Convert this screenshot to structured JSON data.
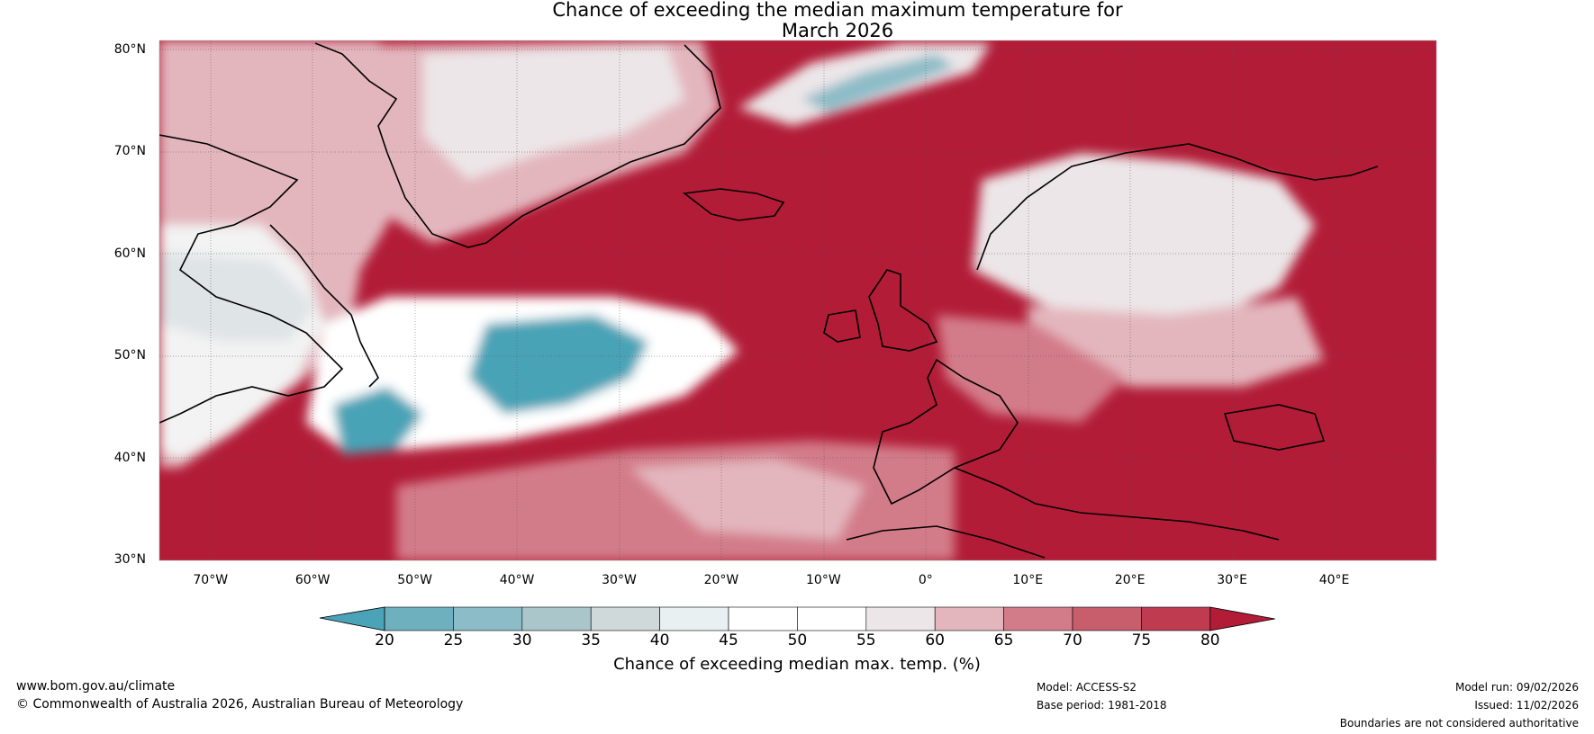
{
  "title": {
    "line1": "Chance of exceeding the median maximum temperature for",
    "line2": "March 2026"
  },
  "map": {
    "lat_labels": [
      "80°N",
      "70°N",
      "60°N",
      "50°N",
      "40°N",
      "30°N"
    ],
    "lon_labels": [
      "70°W",
      "60°W",
      "50°W",
      "40°W",
      "30°W",
      "20°W",
      "10°W",
      "0°",
      "10°E",
      "20°E",
      "30°E",
      "40°E"
    ],
    "lat_range": [
      30,
      80
    ],
    "lon_range": [
      -75,
      50
    ]
  },
  "colorbar": {
    "ticks": [
      "20",
      "25",
      "30",
      "35",
      "40",
      "45",
      "50",
      "55",
      "60",
      "65",
      "70",
      "75",
      "80"
    ],
    "colors": [
      "#4aa3b6",
      "#6fb0bf",
      "#8cbcc7",
      "#aac6cb",
      "#cfd9da",
      "#e8f0f1",
      "#ffffff",
      "#ffffff",
      "#ece6e8",
      "#e3b6bd",
      "#d37c89",
      "#c85d6c",
      "#be3b50",
      "#b21c37"
    ],
    "label": "Chance of exceeding median max. temp. (%)"
  },
  "footer": {
    "url": "www.bom.gov.au/climate",
    "copyright": "© Commonwealth of Australia 2026, Australian Bureau of Meteorology",
    "model": "Model: ACCESS-S2",
    "base_period": "Base period: 1981-2018",
    "model_run": "Model run: 09/02/2026",
    "issued": "Issued: 11/02/2026",
    "disclaimer": "Boundaries are not considered authoritative"
  }
}
